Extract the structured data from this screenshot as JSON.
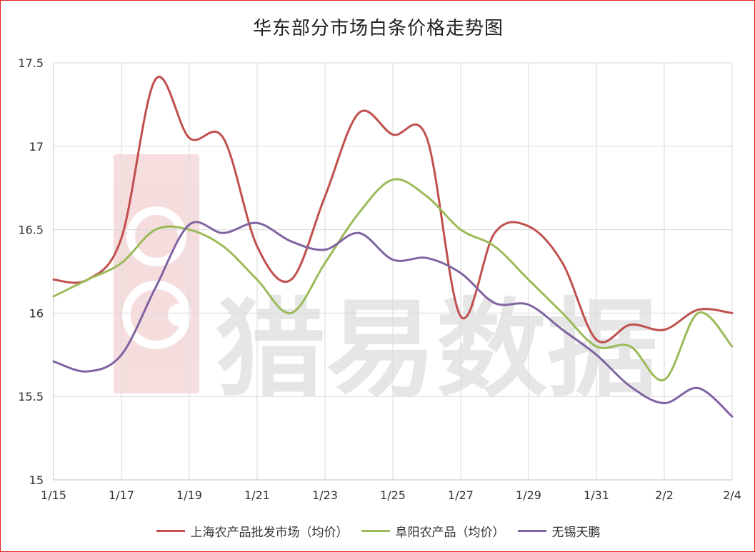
{
  "chart_data": {
    "type": "line",
    "title": "华东部分市场白条价格走势图",
    "x": [
      "1/15",
      "1/16",
      "1/17",
      "1/18",
      "1/19",
      "1/20",
      "1/21",
      "1/22",
      "1/23",
      "1/24",
      "1/25",
      "1/26",
      "1/27",
      "1/28",
      "1/29",
      "1/30",
      "1/31",
      "2/1",
      "2/2",
      "2/3",
      "2/4"
    ],
    "xtick_labels": [
      "1/15",
      "1/17",
      "1/19",
      "1/21",
      "1/23",
      "1/25",
      "1/27",
      "1/29",
      "1/31",
      "2/2",
      "2/4"
    ],
    "ylim": [
      15,
      17.5
    ],
    "ytick_labels": [
      "15",
      "15.5",
      "16",
      "16.5",
      "17",
      "17.5"
    ],
    "grid": true,
    "legend_position": "bottom",
    "series": [
      {
        "name": "上海农产品批发市场（均价）",
        "color": "#c0504d",
        "values": [
          16.2,
          16.2,
          16.45,
          17.4,
          17.05,
          17.05,
          16.4,
          16.2,
          16.7,
          17.2,
          17.07,
          17.05,
          15.98,
          16.48,
          16.52,
          16.3,
          15.84,
          15.93,
          15.9,
          16.02,
          16.0
        ]
      },
      {
        "name": "阜阳农产品（均价）",
        "color": "#9bbb59",
        "values": [
          16.1,
          16.2,
          16.3,
          16.5,
          16.5,
          16.4,
          16.2,
          16.0,
          16.3,
          16.6,
          16.8,
          16.7,
          16.5,
          16.4,
          16.2,
          16.0,
          15.8,
          15.8,
          15.6,
          16.0,
          15.8
        ]
      },
      {
        "name": "无锡天鹏",
        "color": "#8064a2",
        "values": [
          15.71,
          15.65,
          15.75,
          16.15,
          16.53,
          16.48,
          16.54,
          16.43,
          16.38,
          16.48,
          16.32,
          16.33,
          16.24,
          16.06,
          16.05,
          15.9,
          15.75,
          15.56,
          15.46,
          15.55,
          15.38
        ]
      }
    ]
  },
  "watermark": {
    "text": "猎易数据",
    "logo_color": "#e8a0a0"
  }
}
